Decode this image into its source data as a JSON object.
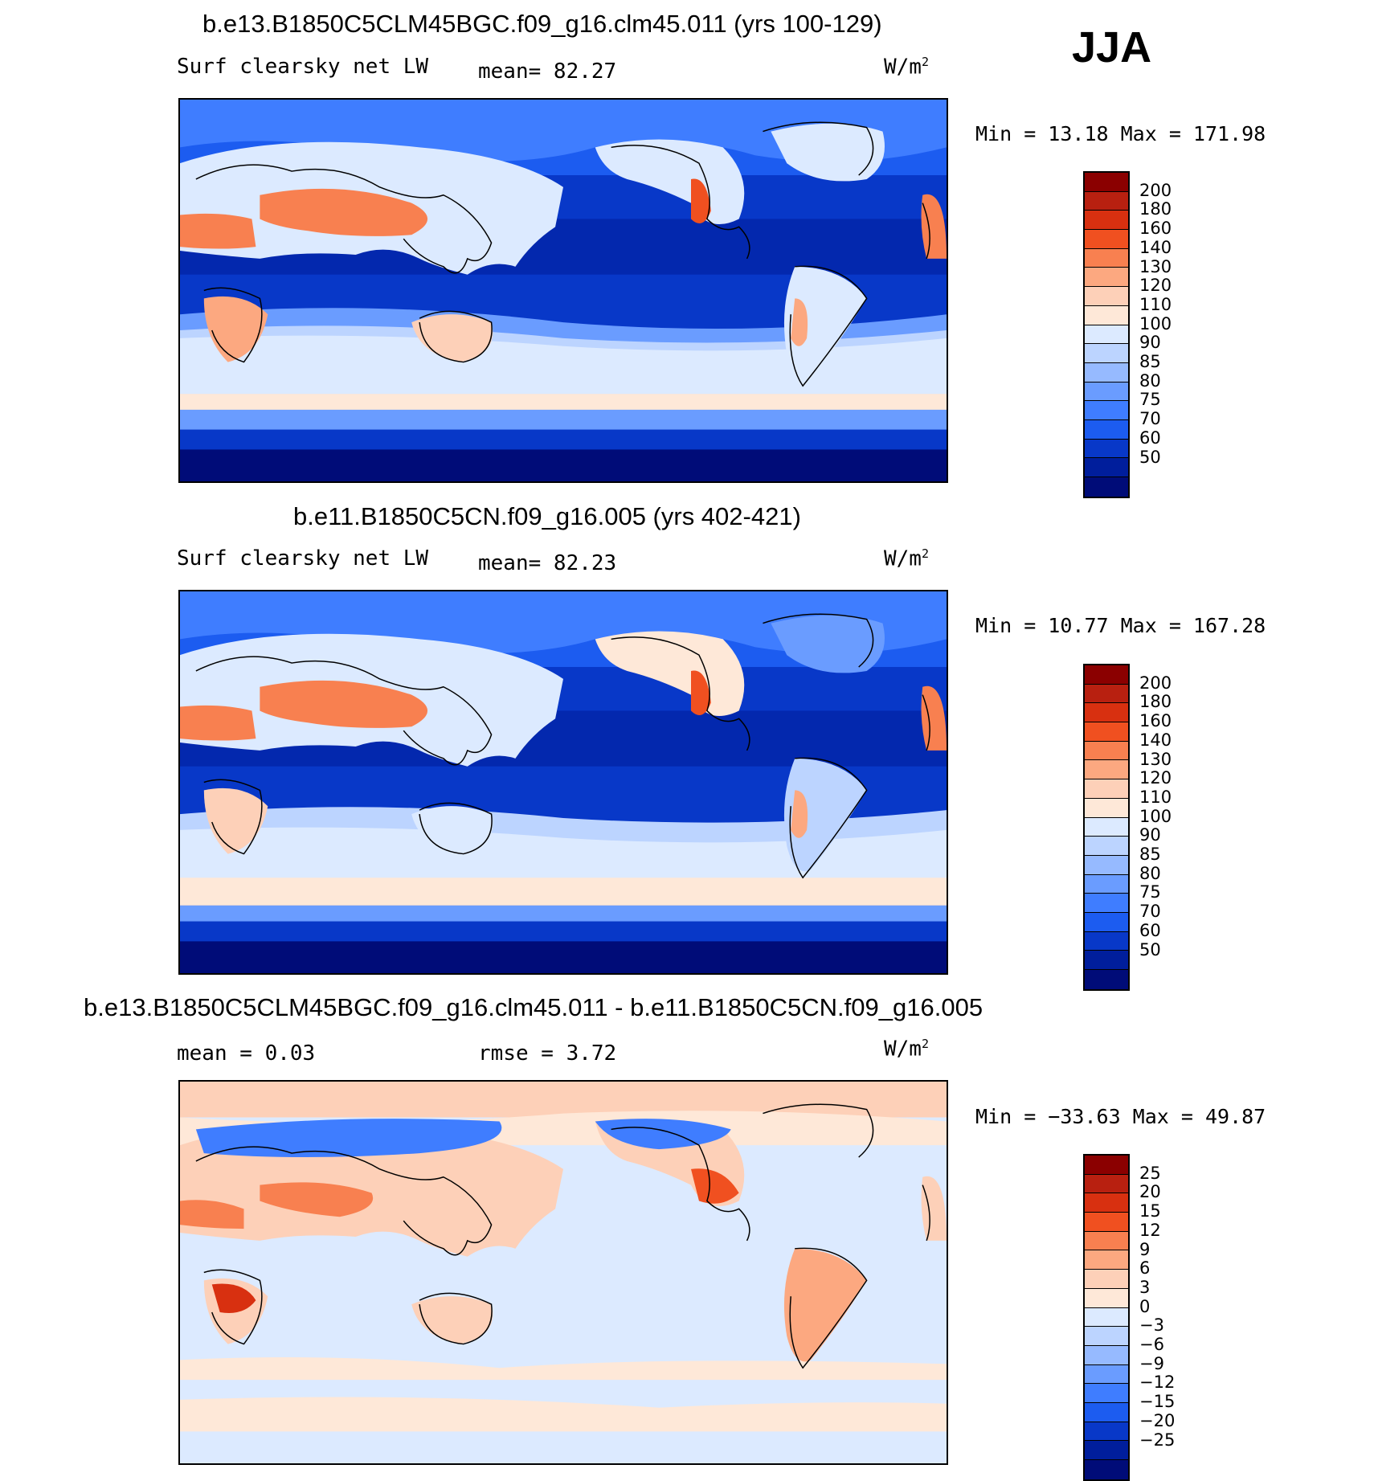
{
  "season": "JJA",
  "units_label": "W/m",
  "units_sup": "2",
  "panels": [
    {
      "title": "b.e13.B1850C5CLM45BGC.f09_g16.clm45.011 (yrs 100-129)",
      "variable": "Surf clearsky net LW",
      "stat1": "mean=   82.27",
      "stat2": "",
      "minmax": "Min =   13.18 Max = 171.98",
      "colors": [
        "#8b0000",
        "#b82010",
        "#d83010",
        "#f05020",
        "#f88050",
        "#fca880",
        "#fdd0b8",
        "#fee8d8",
        "#dceaff",
        "#bcd4ff",
        "#96baff",
        "#6a9cff",
        "#3f7dff",
        "#1c5cf0",
        "#0838c8",
        "#001e9c",
        "#000c78"
      ],
      "ticks": [
        "200",
        "180",
        "160",
        "140",
        "130",
        "120",
        "110",
        "100",
        "90",
        "85",
        "80",
        "75",
        "70",
        "60",
        "50"
      ]
    },
    {
      "title": "b.e11.B1850C5CN.f09_g16.005 (yrs 402-421)",
      "variable": "Surf clearsky net LW",
      "stat1": "mean=   82.23",
      "stat2": "",
      "minmax": "Min =   10.77 Max = 167.28",
      "colors": [
        "#8b0000",
        "#b82010",
        "#d83010",
        "#f05020",
        "#f88050",
        "#fca880",
        "#fdd0b8",
        "#fee8d8",
        "#dceaff",
        "#bcd4ff",
        "#96baff",
        "#6a9cff",
        "#3f7dff",
        "#1c5cf0",
        "#0838c8",
        "#001e9c",
        "#000c78"
      ],
      "ticks": [
        "200",
        "180",
        "160",
        "140",
        "130",
        "120",
        "110",
        "100",
        "90",
        "85",
        "80",
        "75",
        "70",
        "60",
        "50"
      ]
    },
    {
      "title": "b.e13.B1850C5CLM45BGC.f09_g16.clm45.011 - b.e11.B1850C5CN.f09_g16.005",
      "variable": "",
      "stat1": "mean =    0.03",
      "stat2": "rmse =    3.72",
      "minmax": "Min = −33.63 Max =   49.87",
      "colors": [
        "#8b0000",
        "#b82010",
        "#d83010",
        "#f05020",
        "#f88050",
        "#fca880",
        "#fdd0b8",
        "#fee8d8",
        "#dceaff",
        "#bcd4ff",
        "#96baff",
        "#6a9cff",
        "#3f7dff",
        "#1c5cf0",
        "#0838c8",
        "#001e9c",
        "#000c78"
      ],
      "ticks": [
        "25",
        "20",
        "15",
        "12",
        "9",
        "6",
        "3",
        "0",
        "−3",
        "−6",
        "−9",
        "−12",
        "−15",
        "−20",
        "−25"
      ]
    }
  ]
}
